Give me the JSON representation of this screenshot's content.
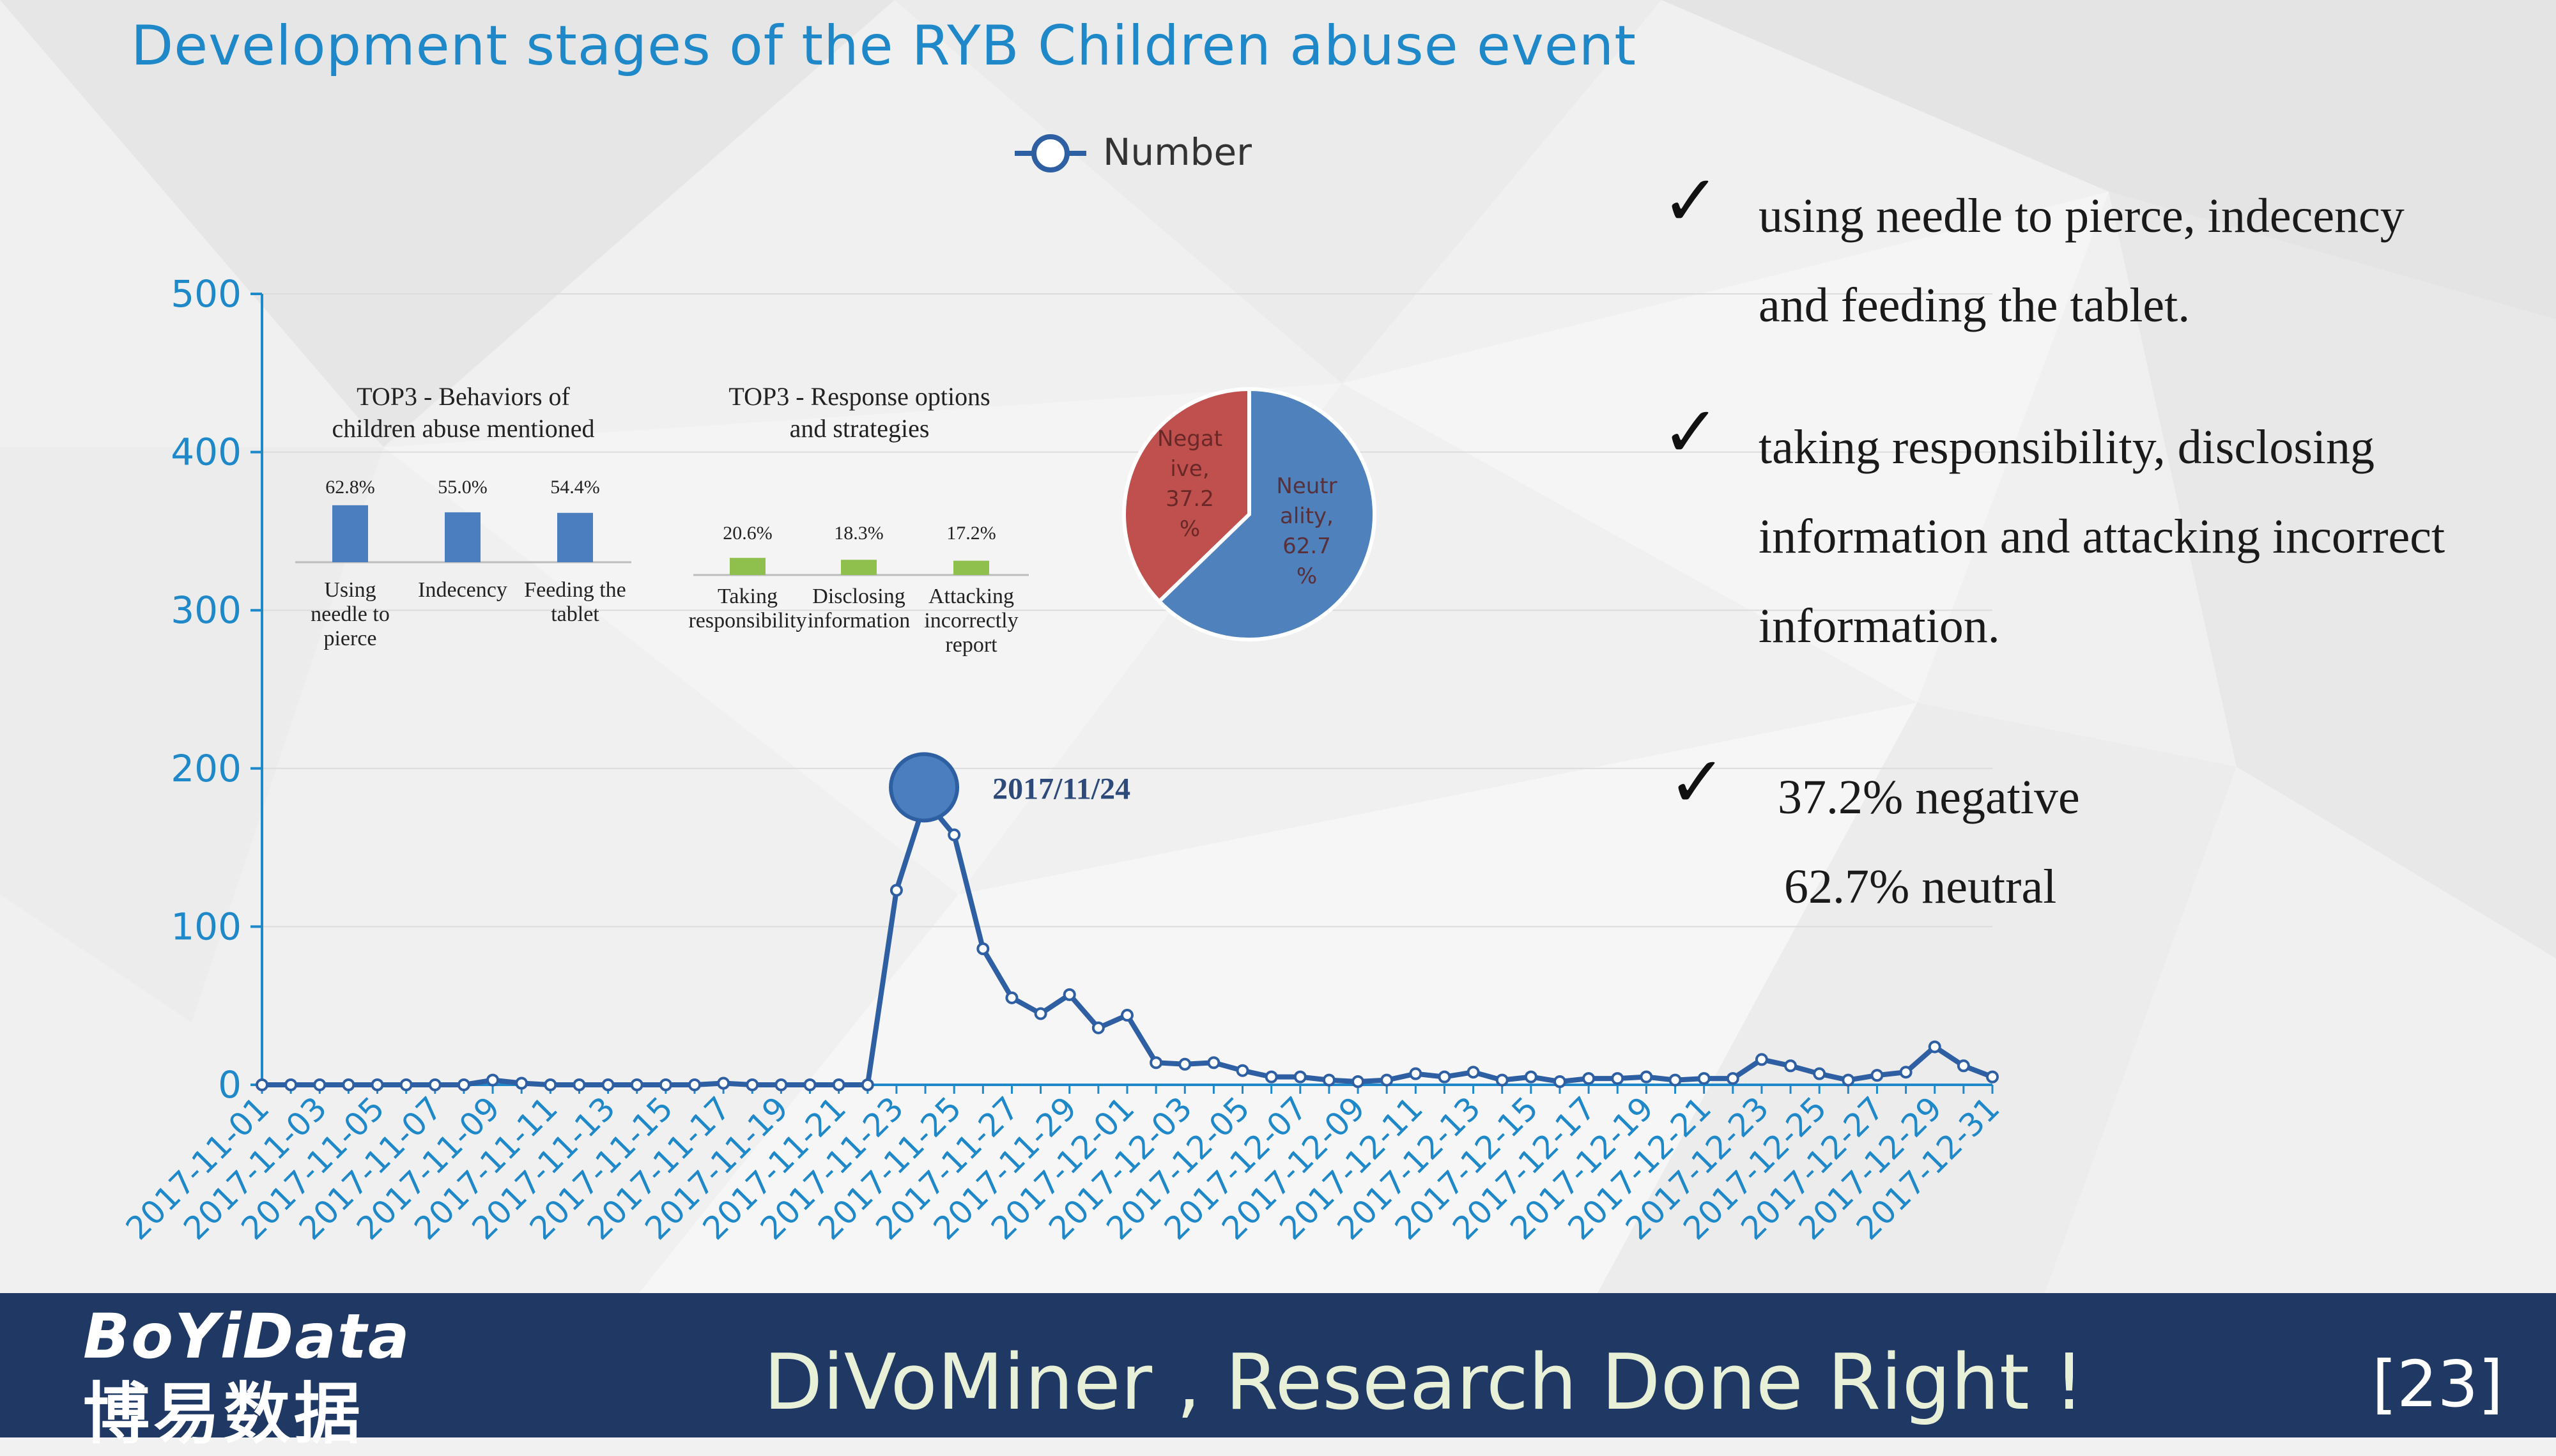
{
  "slide": {
    "title": "Development stages of the RYB Children abuse event",
    "page_number": "[23]",
    "footer": {
      "logo_en": "BoYiData",
      "logo_cn": "博易数据",
      "slogan": "DiVoMiner , Research Done Right !"
    },
    "bullets": [
      {
        "lines": [
          "using needle to pierce, indecency",
          "and feeding the tablet."
        ]
      },
      {
        "lines": [
          " taking responsibility, disclosing",
          "information and attacking incorrect",
          "information."
        ]
      },
      {
        "lines": [
          "37.2% negative",
          "62.7% neutral"
        ]
      }
    ],
    "check_glyph": "✓"
  },
  "chart_data": [
    {
      "type": "line",
      "legend": "Number",
      "legend_position": "top-center",
      "ylim": [
        0,
        500
      ],
      "yticks": [
        0,
        100,
        200,
        300,
        400,
        500
      ],
      "annotation": {
        "label": "2017/11/24",
        "x": "2017-11-24",
        "y": 180
      },
      "color": "#2e5fa3",
      "axis_color": "#1e88c8",
      "x": [
        "2017-11-01",
        "2017-11-02",
        "2017-11-03",
        "2017-11-04",
        "2017-11-05",
        "2017-11-06",
        "2017-11-07",
        "2017-11-08",
        "2017-11-09",
        "2017-11-10",
        "2017-11-11",
        "2017-11-12",
        "2017-11-13",
        "2017-11-14",
        "2017-11-15",
        "2017-11-16",
        "2017-11-17",
        "2017-11-18",
        "2017-11-19",
        "2017-11-20",
        "2017-11-21",
        "2017-11-22",
        "2017-11-23",
        "2017-11-24",
        "2017-11-25",
        "2017-11-26",
        "2017-11-27",
        "2017-11-28",
        "2017-11-29",
        "2017-11-30",
        "2017-12-01",
        "2017-12-02",
        "2017-12-03",
        "2017-12-04",
        "2017-12-05",
        "2017-12-06",
        "2017-12-07",
        "2017-12-08",
        "2017-12-09",
        "2017-12-10",
        "2017-12-11",
        "2017-12-12",
        "2017-12-13",
        "2017-12-14",
        "2017-12-15",
        "2017-12-16",
        "2017-12-17",
        "2017-12-18",
        "2017-12-19",
        "2017-12-20",
        "2017-12-21",
        "2017-12-22",
        "2017-12-23",
        "2017-12-24",
        "2017-12-25",
        "2017-12-26",
        "2017-12-27",
        "2017-12-28",
        "2017-12-29",
        "2017-12-30",
        "2017-12-31"
      ],
      "xtick_labels": [
        "2017-11-01",
        "2017-11-03",
        "2017-11-05",
        "2017-11-07",
        "2017-11-09",
        "2017-11-11",
        "2017-11-13",
        "2017-11-15",
        "2017-11-17",
        "2017-11-19",
        "2017-11-21",
        "2017-11-23",
        "2017-11-25",
        "2017-11-27",
        "2017-11-29",
        "2017-12-01",
        "2017-12-03",
        "2017-12-05",
        "2017-12-07",
        "2017-12-09",
        "2017-12-11",
        "2017-12-13",
        "2017-12-15",
        "2017-12-17",
        "2017-12-19",
        "2017-12-21",
        "2017-12-23",
        "2017-12-25",
        "2017-12-27",
        "2017-12-29",
        "2017-12-31"
      ],
      "values": [
        0,
        0,
        0,
        0,
        0,
        0,
        0,
        0,
        3,
        1,
        0,
        0,
        0,
        0,
        0,
        0,
        1,
        0,
        0,
        0,
        0,
        0,
        123,
        180,
        158,
        86,
        55,
        45,
        57,
        36,
        44,
        14,
        13,
        14,
        9,
        5,
        5,
        3,
        2,
        3,
        7,
        5,
        8,
        3,
        5,
        2,
        4,
        4,
        5,
        3,
        4,
        4,
        16,
        12,
        7,
        3,
        6,
        8,
        24,
        12,
        5
      ]
    },
    {
      "type": "bar",
      "title": "TOP3 - Behaviors of children abuse mentioned",
      "title_lines": [
        "TOP3 - Behaviors of",
        "children abuse mentioned"
      ],
      "color": "#4a7ebf",
      "categories": [
        "Using needle to pierce",
        "Indecency",
        "Feeding the tablet"
      ],
      "category_lines": [
        [
          "Using",
          "needle to",
          "pierce"
        ],
        [
          "Indecency"
        ],
        [
          "Feeding the",
          "tablet"
        ]
      ],
      "values": [
        62.8,
        55.0,
        54.4
      ],
      "value_labels": [
        "62.8%",
        "55.0%",
        "54.4%"
      ]
    },
    {
      "type": "bar",
      "title": "TOP3 - Response options and strategies",
      "title_lines": [
        "TOP3 - Response options",
        "and strategies"
      ],
      "color": "#8fbf4d",
      "categories": [
        "Taking responsibility",
        "Disclosing information",
        "Attacking incorrectly report"
      ],
      "category_lines": [
        [
          "Taking",
          "responsibility"
        ],
        [
          "Disclosing",
          "information"
        ],
        [
          "Attacking",
          "incorrectly",
          "report"
        ]
      ],
      "values": [
        20.6,
        18.3,
        17.2
      ],
      "value_labels": [
        "20.6%",
        "18.3%",
        "17.2%"
      ]
    },
    {
      "type": "pie",
      "slices": [
        {
          "name": "Negative",
          "value": 37.2,
          "color": "#c0504d",
          "label_lines": [
            "Negat",
            "ive,",
            "37.2",
            "%"
          ]
        },
        {
          "name": "Neutrality",
          "value": 62.7,
          "color": "#4f81bd",
          "label_lines": [
            "Neutr",
            "ality,",
            "62.7",
            "%"
          ]
        }
      ]
    }
  ]
}
